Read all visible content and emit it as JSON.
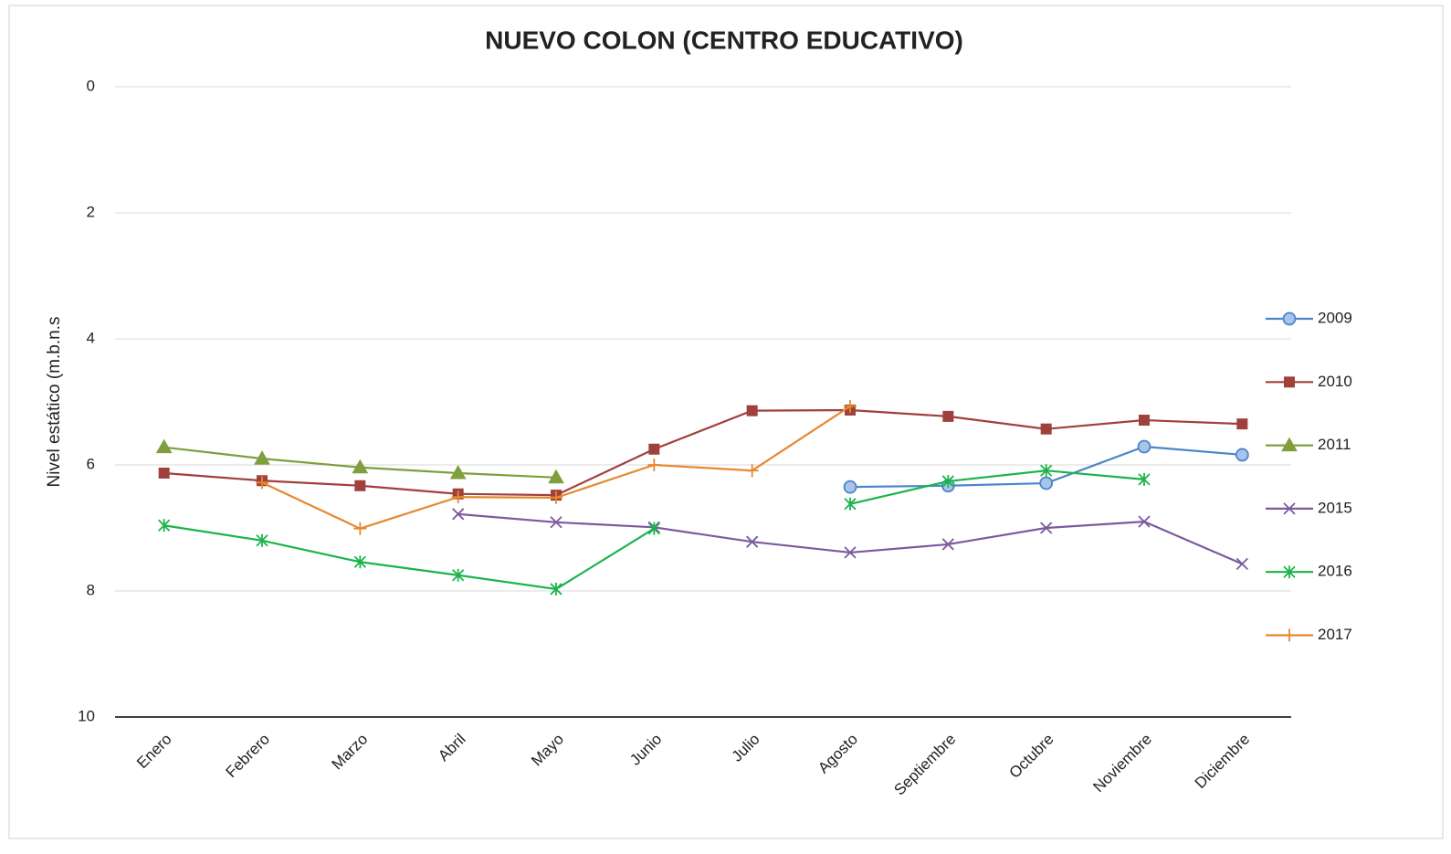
{
  "chart_data": {
    "type": "line",
    "title": "NUEVO COLON (CENTRO EDUCATIVO)",
    "y_label": "Nivel estático (m.b.n.s",
    "categories": [
      "Enero",
      "Febrero",
      "Marzo",
      "Abril",
      "Mayo",
      "Junio",
      "Julio",
      "Agosto",
      "Septiembre",
      "Octubre",
      "Noviembre",
      "Diciembre"
    ],
    "ylim": [
      0,
      10
    ],
    "yticks": [
      0,
      2,
      4,
      6,
      8,
      10
    ],
    "y_inverted": true,
    "grid": true,
    "legend": "right",
    "series": [
      {
        "name": "2009",
        "color": "#4a86c8",
        "marker": "circle",
        "values": [
          null,
          null,
          null,
          null,
          null,
          null,
          null,
          6.35,
          6.33,
          6.29,
          5.71,
          5.84
        ]
      },
      {
        "name": "2010",
        "color": "#a0403c",
        "marker": "square",
        "values": [
          6.13,
          6.25,
          6.33,
          6.46,
          6.48,
          5.75,
          5.14,
          5.13,
          5.23,
          5.43,
          5.29,
          5.35
        ]
      },
      {
        "name": "2011",
        "color": "#7f9f3c",
        "marker": "triangle",
        "values": [
          5.72,
          5.9,
          6.04,
          6.13,
          6.2,
          null,
          null,
          null,
          null,
          null,
          null,
          null
        ]
      },
      {
        "name": "2015",
        "color": "#7b5a9e",
        "marker": "x",
        "values": [
          null,
          null,
          null,
          6.78,
          6.91,
          6.99,
          7.22,
          7.39,
          7.26,
          7.0,
          6.9,
          7.57
        ]
      },
      {
        "name": "2016",
        "color": "#1db34c",
        "marker": "star",
        "values": [
          6.96,
          7.2,
          7.54,
          7.75,
          7.97,
          7.01,
          null,
          6.62,
          6.26,
          6.09,
          6.23,
          null
        ]
      },
      {
        "name": "2017",
        "color": "#e5892f",
        "marker": "plus",
        "values": [
          null,
          6.28,
          7.01,
          6.51,
          6.52,
          6.0,
          6.09,
          5.07,
          null,
          null,
          null,
          null
        ]
      }
    ]
  }
}
